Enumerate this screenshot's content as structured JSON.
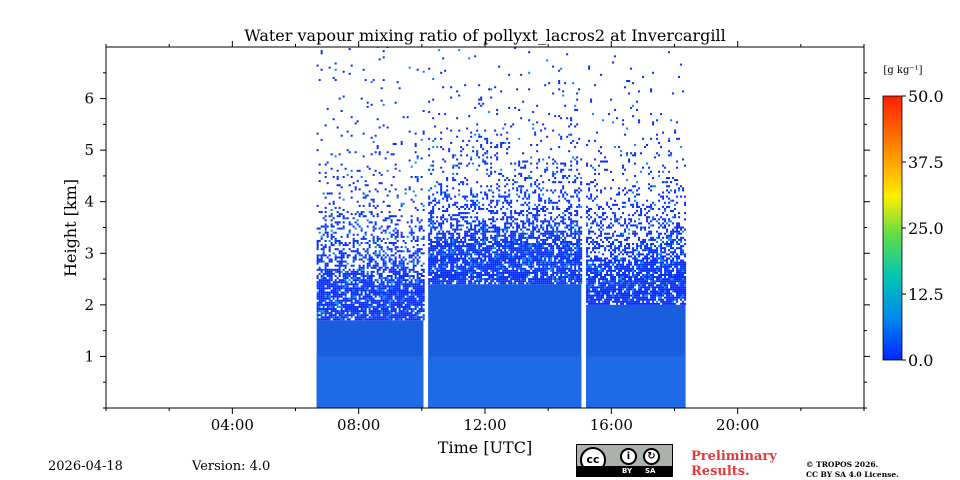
{
  "chart_data": {
    "type": "heatmap",
    "title": "Water vapour mixing ratio of pollyxt_lacros2 at Invercargill",
    "xlabel": "Time [UTC]",
    "ylabel": "Height [km]",
    "xlim_hours": [
      0,
      24
    ],
    "ylim_km": [
      0,
      7
    ],
    "x_ticks_labeled": [
      "04:00",
      "08:00",
      "12:00",
      "16:00",
      "20:00"
    ],
    "x_tick_hours_labeled": [
      4,
      8,
      12,
      16,
      20
    ],
    "y_ticks": [
      1,
      2,
      3,
      4,
      5,
      6
    ],
    "y_tick_labels": [
      "1",
      "2",
      "3",
      "4",
      "5",
      "6"
    ],
    "colorbar": {
      "label": "[g kg⁻¹]",
      "range": [
        0,
        50
      ],
      "ticks": [
        0,
        12.5,
        25,
        37.5,
        50
      ],
      "tick_labels": [
        "0.0",
        "12.5",
        "25.0",
        "37.5",
        "50.0"
      ],
      "colormap": [
        "#0028ff",
        "#0088ee",
        "#00c8b0",
        "#66dd44",
        "#ffee00",
        "#ff8800",
        "#ff1e00"
      ]
    },
    "segments": [
      {
        "start_hour": 6.67,
        "end_hour": 10.05,
        "data_top_km": 7.0
      },
      {
        "start_hour": 10.2,
        "end_hour": 15.05,
        "data_top_km": 7.0
      },
      {
        "start_hour": 15.2,
        "end_hour": 18.35,
        "data_top_km": 6.9
      }
    ],
    "dense_layer_top_km": {
      "first_segment": 2.5,
      "second_segment": 3.2,
      "third_segment": 2.8
    },
    "typical_value_g_per_kg": 3
  },
  "footer": {
    "date": "2026-04-18",
    "version": "Version: 4.0",
    "preliminary": "Preliminary\nResults.",
    "copyright": "© TROPOS 2026.\nCC BY SA 4.0 License.",
    "license_badge_text": "cc",
    "license_by": "BY",
    "license_sa": "SA"
  }
}
